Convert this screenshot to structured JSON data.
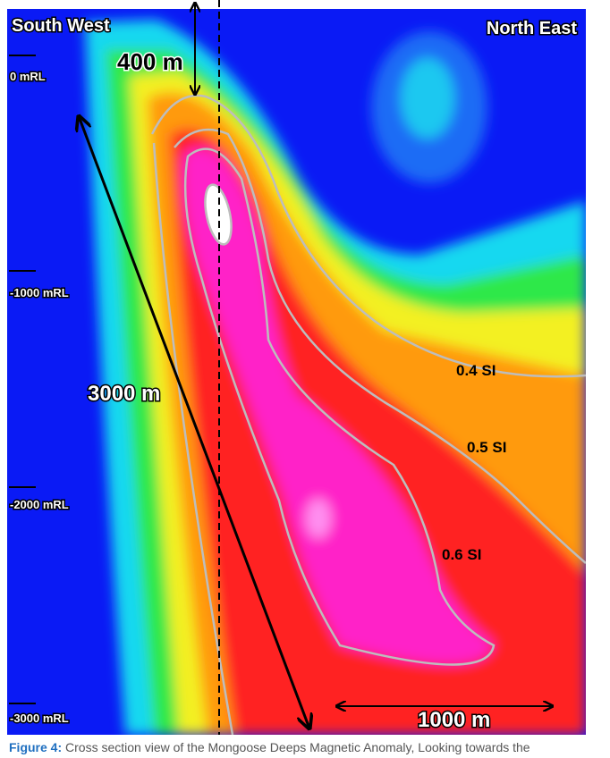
{
  "figure": {
    "corner_labels": {
      "left": "South West",
      "right": "North East"
    },
    "depth_labels": [
      "0 mRL",
      "-1000 mRL",
      "-2000 mRL",
      "-3000 mRL"
    ],
    "scale_labels": {
      "width_top": "400 m",
      "length": "3000 m",
      "width_bottom": "1000 m"
    },
    "contour_labels": [
      "0.4 SI",
      "0.5 SI",
      "0.6 SI"
    ]
  },
  "caption": {
    "label": "Figure 4:",
    "text": " Cross section view of the Mongoose Deeps Magnetic Anomaly, Looking towards the"
  }
}
